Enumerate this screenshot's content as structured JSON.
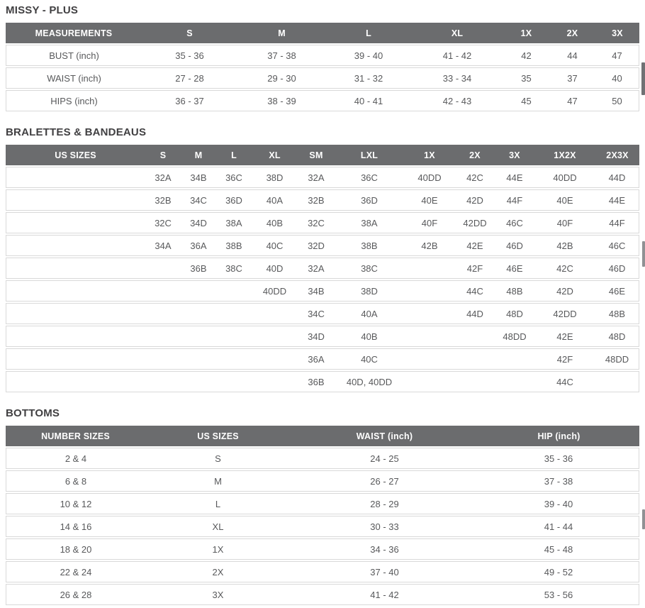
{
  "colors": {
    "header_bg": "#6b6c6e",
    "header_text": "#ffffff",
    "body_text": "#58595b",
    "title_text": "#414042",
    "row_border": "#d9d9d9",
    "scrollbar_dark": "#707174",
    "scrollbar_light": "#909194"
  },
  "tables": [
    {
      "title": "MISSY - PLUS",
      "headers": [
        "MEASUREMENTS",
        "S",
        "M",
        "L",
        "XL",
        "1X",
        "2X",
        "3X"
      ],
      "rows": [
        [
          "BUST (inch)",
          "35 - 36",
          "37 - 38",
          "39 - 40",
          "41 - 42",
          "42",
          "44",
          "47"
        ],
        [
          "WAIST (inch)",
          "27 - 28",
          "29 - 30",
          "31 - 32",
          "33 - 34",
          "35",
          "37",
          "40"
        ],
        [
          "HIPS (inch)",
          "36 - 37",
          "38 - 39",
          "40 - 41",
          "42 - 43",
          "45",
          "47",
          "50"
        ]
      ]
    },
    {
      "title": "BRALETTES & BANDEAUS",
      "headers": [
        "US SIZES",
        "S",
        "M",
        "L",
        "XL",
        "SM",
        "LXL",
        "1X",
        "2X",
        "3X",
        "1X2X",
        "2X3X"
      ],
      "rows": [
        [
          "",
          "32A",
          "34B",
          "36C",
          "38D",
          "32A",
          "36C",
          "40DD",
          "42C",
          "44E",
          "40DD",
          "44D"
        ],
        [
          "",
          "32B",
          "34C",
          "36D",
          "40A",
          "32B",
          "36D",
          "40E",
          "42D",
          "44F",
          "40E",
          "44E"
        ],
        [
          "",
          "32C",
          "34D",
          "38A",
          "40B",
          "32C",
          "38A",
          "40F",
          "42DD",
          "46C",
          "40F",
          "44F"
        ],
        [
          "",
          "34A",
          "36A",
          "38B",
          "40C",
          "32D",
          "38B",
          "42B",
          "42E",
          "46D",
          "42B",
          "46C"
        ],
        [
          "",
          "",
          "36B",
          "38C",
          "40D",
          "32A",
          "38C",
          "",
          "42F",
          "46E",
          "42C",
          "46D"
        ],
        [
          "",
          "",
          "",
          "",
          "40DD",
          "34B",
          "38D",
          "",
          "44C",
          "48B",
          "42D",
          "46E"
        ],
        [
          "",
          "",
          "",
          "",
          "",
          "34C",
          "40A",
          "",
          "44D",
          "48D",
          "42DD",
          "48B"
        ],
        [
          "",
          "",
          "",
          "",
          "",
          "34D",
          "40B",
          "",
          "",
          "48DD",
          "42E",
          "48D"
        ],
        [
          "",
          "",
          "",
          "",
          "",
          "36A",
          "40C",
          "",
          "",
          "",
          "42F",
          "48DD"
        ],
        [
          "",
          "",
          "",
          "",
          "",
          "36B",
          "40D, 40DD",
          "",
          "",
          "",
          "44C",
          ""
        ]
      ]
    },
    {
      "title": "BOTTOMS",
      "headers": [
        "NUMBER SIZES",
        "US SIZES",
        "WAIST (inch)",
        "HIP (inch)"
      ],
      "rows": [
        [
          "2 & 4",
          "S",
          "24 - 25",
          "35 - 36"
        ],
        [
          "6 & 8",
          "M",
          "26 - 27",
          "37 - 38"
        ],
        [
          "10 & 12",
          "L",
          "28 - 29",
          "39 - 40"
        ],
        [
          "14 & 16",
          "XL",
          "30 - 33",
          "41 - 44"
        ],
        [
          "18 & 20",
          "1X",
          "34 - 36",
          "45 - 48"
        ],
        [
          "22 & 24",
          "2X",
          "37 - 40",
          "49 - 52"
        ],
        [
          "26 & 28",
          "3X",
          "41 - 42",
          "53 - 56"
        ]
      ]
    }
  ]
}
